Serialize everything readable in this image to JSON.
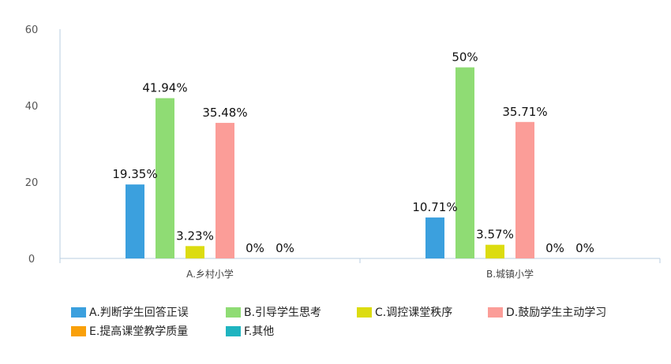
{
  "chart_data": {
    "type": "bar",
    "categories": [
      "A.乡村小学",
      "B.城镇小学"
    ],
    "ylim": [
      0,
      60
    ],
    "yticks": [
      0,
      20,
      40,
      60
    ],
    "grid": false,
    "legend_position": "bottom",
    "series": [
      {
        "name": "A.判断学生回答正误",
        "color": "#3BA0DE",
        "values": [
          19.35,
          10.71
        ],
        "labels": [
          "19.35%",
          "10.71%"
        ]
      },
      {
        "name": "B.引导学生思考",
        "color": "#8FDC74",
        "values": [
          41.94,
          50
        ],
        "labels": [
          "41.94%",
          "50%"
        ]
      },
      {
        "name": "C.调控课堂秩序",
        "color": "#DCDC10",
        "values": [
          3.23,
          3.57
        ],
        "labels": [
          "3.23%",
          "3.57%"
        ]
      },
      {
        "name": "D.鼓励学生主动学习",
        "color": "#FB9D98",
        "values": [
          35.48,
          35.71
        ],
        "labels": [
          "35.48%",
          "35.71%"
        ]
      },
      {
        "name": "E.提高课堂教学质量",
        "color": "#F9A00A",
        "values": [
          0,
          0
        ],
        "labels": [
          "0%",
          "0%"
        ]
      },
      {
        "name": "F.其他",
        "color": "#1FB4C0",
        "values": [
          0,
          0
        ],
        "labels": [
          "0%",
          "0%"
        ]
      }
    ]
  }
}
